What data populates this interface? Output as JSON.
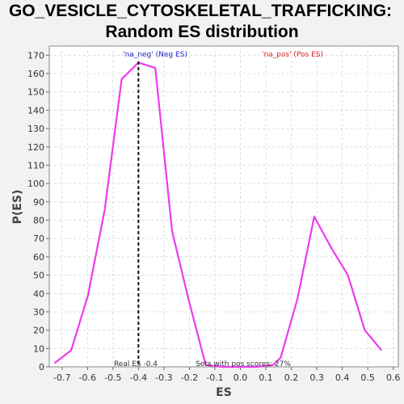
{
  "chart_data": {
    "type": "line",
    "title": [
      "GO_VESICLE_CYTOSKELETAL_TRAFFICKING:",
      "Random ES distribution"
    ],
    "xlabel": "ES",
    "ylabel": "P(ES)",
    "xlim": [
      -0.75,
      0.62
    ],
    "ylim": [
      0,
      175
    ],
    "xticks": [
      -0.7,
      -0.6,
      -0.5,
      -0.4,
      -0.3,
      -0.2,
      -0.1,
      0.0,
      0.1,
      0.2,
      0.3,
      0.4,
      0.5,
      0.6
    ],
    "xtick_labels": [
      "-0.7",
      "-0.6",
      "-0.5",
      "-0.4",
      "-0.3",
      "-0.2",
      "-0.1",
      "0.0",
      "0.1",
      "0.2",
      "0.3",
      "0.4",
      "0.5",
      "0.6"
    ],
    "yticks": [
      0,
      10,
      20,
      30,
      40,
      50,
      60,
      70,
      80,
      90,
      100,
      110,
      120,
      130,
      140,
      150,
      160,
      170
    ],
    "ytick_labels": [
      "0",
      "10",
      "20",
      "30",
      "40",
      "50",
      "60",
      "70",
      "80",
      "90",
      "100",
      "110",
      "120",
      "130",
      "140",
      "150",
      "160",
      "170"
    ],
    "grid": true,
    "series": [
      {
        "color": "#ee3aee",
        "x": [
          -0.73,
          -0.664,
          -0.598,
          -0.532,
          -0.466,
          -0.4,
          -0.334,
          -0.268,
          -0.202,
          -0.136,
          -0.07,
          -0.004,
          0.062,
          0.128,
          0.158,
          0.224,
          0.29,
          0.356,
          0.422,
          0.488,
          0.554
        ],
        "y": [
          2,
          9,
          39,
          86,
          157,
          166,
          163,
          74,
          36,
          1,
          0,
          0,
          0,
          1,
          5,
          37,
          82,
          65,
          50,
          20,
          9
        ]
      }
    ],
    "real_es": {
      "x": -0.4,
      "label": "Real ES -0.4"
    },
    "annotations": {
      "neg_label": "'na_neg' (Neg ES)",
      "pos_label": "'na_pos' (Pos ES)",
      "pos_scores": "Sets with pos scores: 27%"
    },
    "colors": {
      "neg": "#2222cc",
      "pos": "#dd2222",
      "line": "#ee3aee",
      "real_es": "#111111"
    }
  }
}
